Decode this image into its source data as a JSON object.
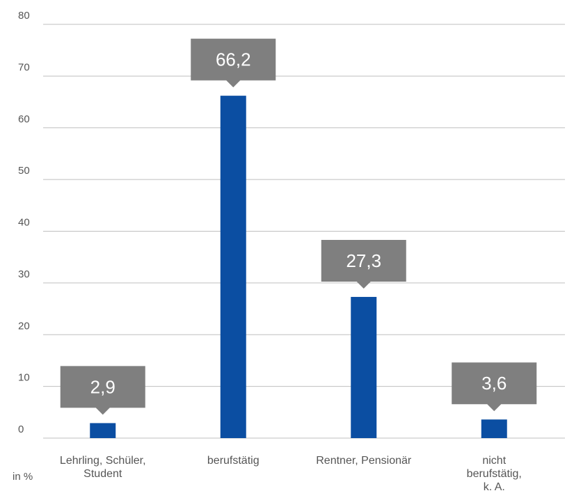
{
  "chart_data": {
    "type": "bar",
    "categories": [
      [
        "Lehrling, Schüler,",
        "Student"
      ],
      [
        "berufstätig"
      ],
      [
        "Rentner, Pensionär"
      ],
      [
        "nicht",
        "berufstätig,",
        "k. A."
      ]
    ],
    "values": [
      2.9,
      66.2,
      27.3,
      3.6
    ],
    "value_labels": [
      "2,9",
      "66,2",
      "27,3",
      "3,6"
    ],
    "y_ticks": [
      0,
      10,
      20,
      30,
      40,
      50,
      60,
      70,
      80
    ],
    "ylim": [
      0,
      80
    ],
    "unit_label": "in %",
    "grid": true,
    "colors": {
      "bar": "#0b4ea2",
      "callout": "#7f7f7f",
      "grid": "#bfbfbf"
    }
  }
}
